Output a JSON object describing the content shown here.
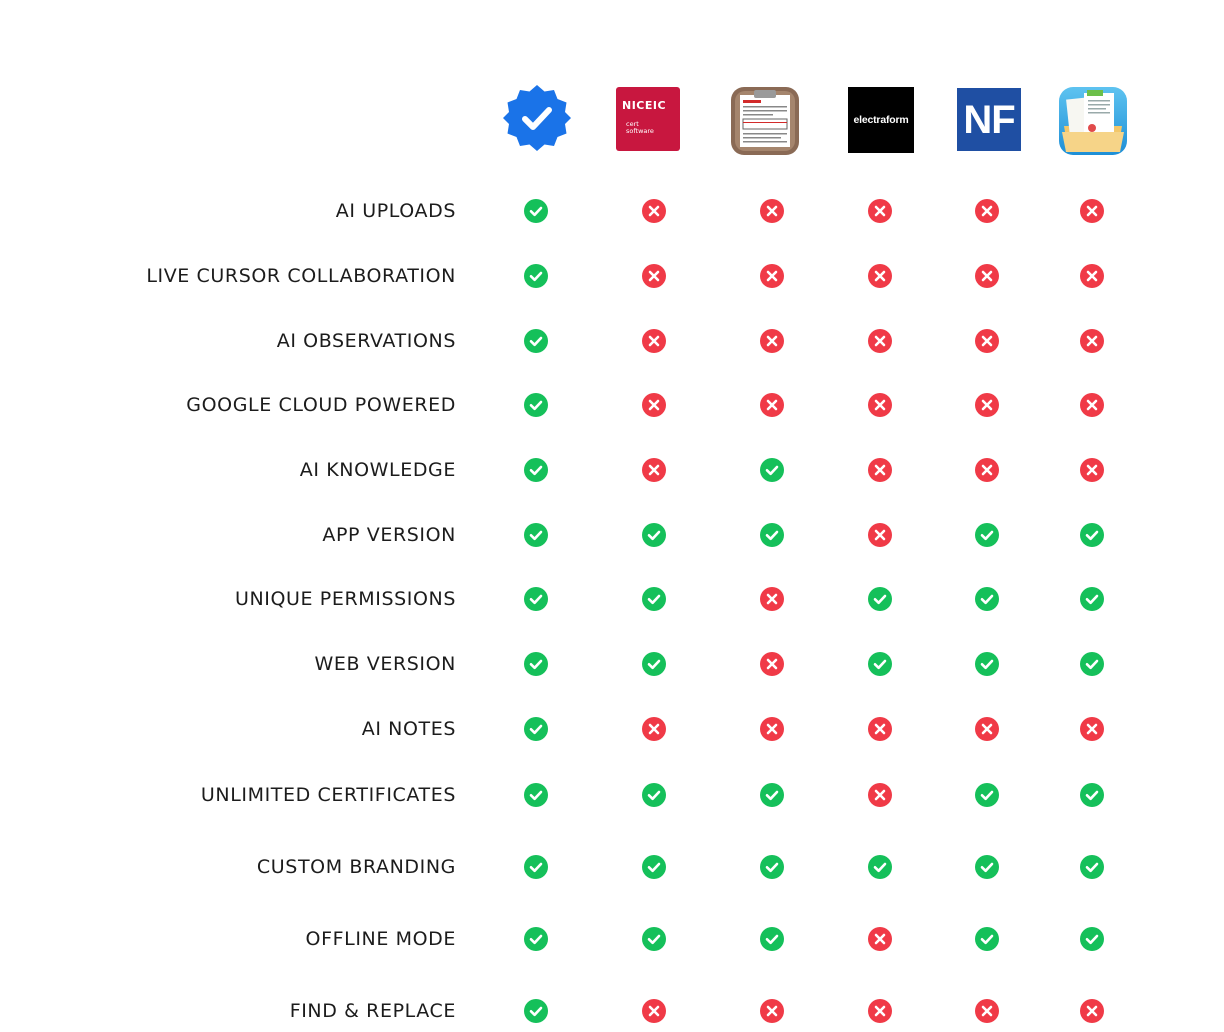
{
  "products": [
    {
      "name": "verified-badge",
      "icon": "verified-check-badge-icon"
    },
    {
      "name": "niceic",
      "wordmark": "NICEIC",
      "subtext": "cert software",
      "icon": "niceic-logo"
    },
    {
      "name": "clipboard-certificate",
      "icon": "clipboard-form-icon"
    },
    {
      "name": "electraform",
      "wordmark": "electraform",
      "icon": "electraform-logo"
    },
    {
      "name": "nf",
      "wordmark": "NF",
      "icon": "nf-logo"
    },
    {
      "name": "cert-report",
      "icon": "certificate-report-folder-icon"
    }
  ],
  "colors": {
    "yes": "#15c05a",
    "no": "#f03a47",
    "label": "#1c1c1c",
    "badge": "#1a73e8"
  },
  "features": [
    {
      "label": "AI UPLOADS",
      "support": [
        true,
        false,
        false,
        false,
        false,
        false
      ]
    },
    {
      "label": "LIVE CURSOR COLLABORATION",
      "support": [
        true,
        false,
        false,
        false,
        false,
        false
      ]
    },
    {
      "label": "AI OBSERVATIONS",
      "support": [
        true,
        false,
        false,
        false,
        false,
        false
      ]
    },
    {
      "label": "GOOGLE CLOUD POWERED",
      "support": [
        true,
        false,
        false,
        false,
        false,
        false
      ]
    },
    {
      "label": "AI KNOWLEDGE",
      "support": [
        true,
        false,
        true,
        false,
        false,
        false
      ]
    },
    {
      "label": "APP VERSION",
      "support": [
        true,
        true,
        true,
        false,
        true,
        true
      ]
    },
    {
      "label": "UNIQUE PERMISSIONS",
      "support": [
        true,
        true,
        false,
        true,
        true,
        true
      ]
    },
    {
      "label": "WEB VERSION",
      "support": [
        true,
        true,
        false,
        true,
        true,
        true
      ]
    },
    {
      "label": "AI NOTES",
      "support": [
        true,
        false,
        false,
        false,
        false,
        false
      ]
    },
    {
      "label": "UNLIMITED CERTIFICATES",
      "support": [
        true,
        true,
        true,
        false,
        true,
        true
      ]
    },
    {
      "label": "CUSTOM BRANDING",
      "support": [
        true,
        true,
        true,
        true,
        true,
        true
      ]
    },
    {
      "label": "OFFLINE MODE",
      "support": [
        true,
        true,
        true,
        false,
        true,
        true
      ]
    },
    {
      "label": "FIND & REPLACE",
      "support": [
        true,
        false,
        false,
        false,
        false,
        false
      ]
    }
  ]
}
